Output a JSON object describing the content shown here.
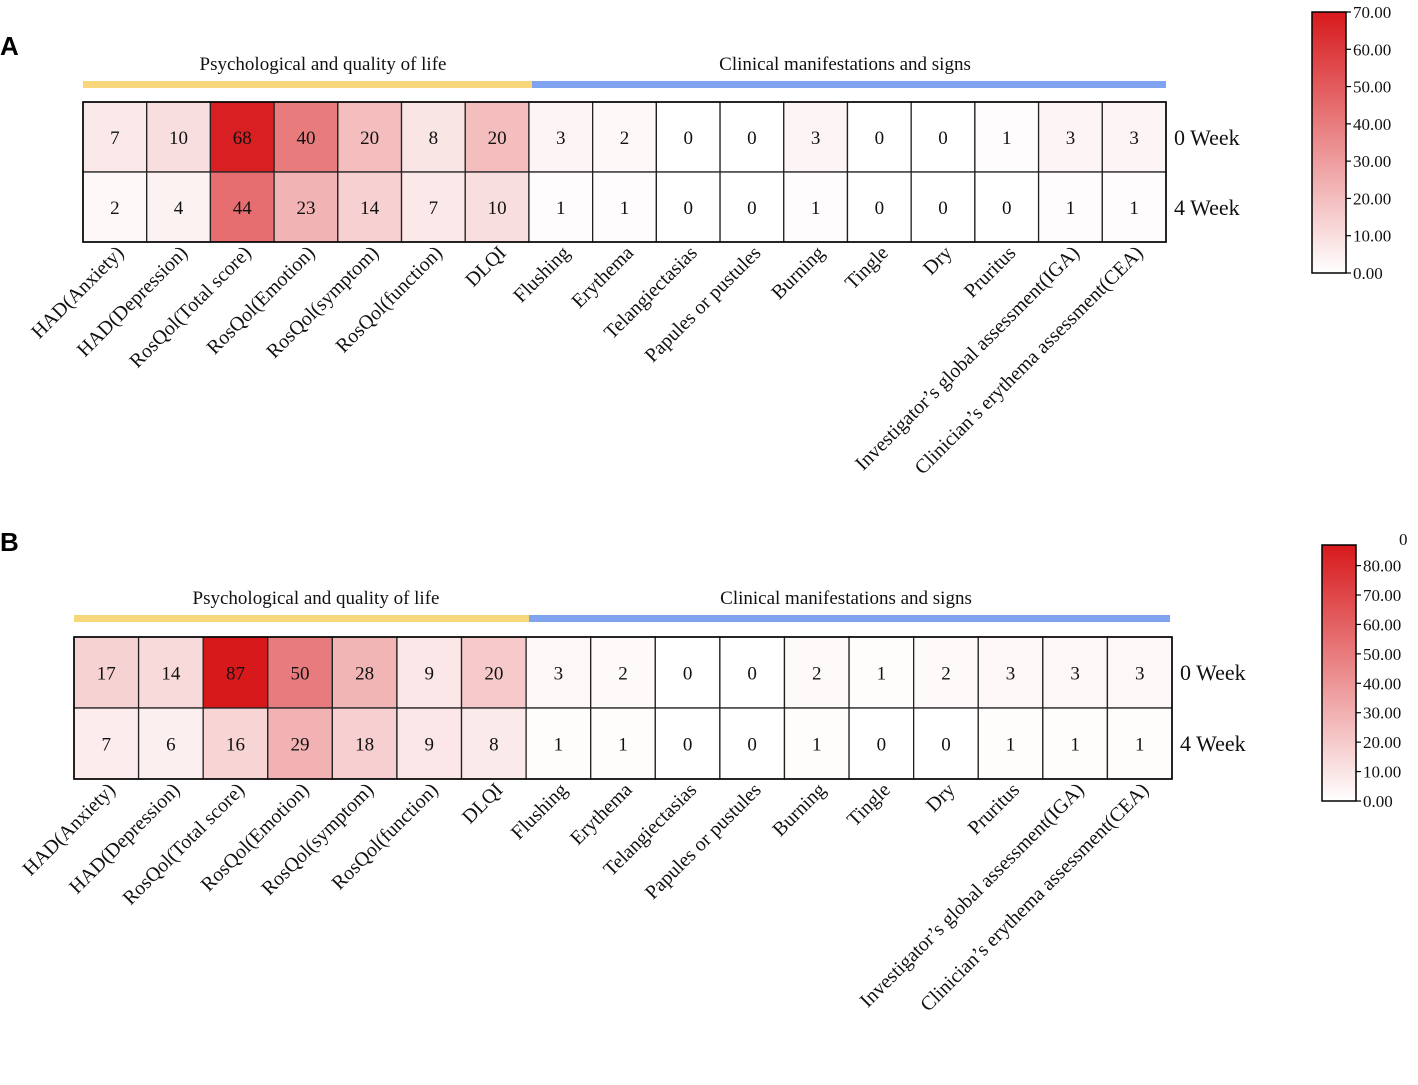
{
  "chart_data": [
    {
      "type": "heatmap",
      "panel": "A",
      "groups": [
        {
          "label": "Psychological and quality of life",
          "color": "#f7d77a"
        },
        {
          "label": "Clinical manifestations and signs",
          "color": "#7fa3ee"
        }
      ],
      "columns": [
        "HAD(Anxiety)",
        "HAD(Depression)",
        "RosQol(Total score)",
        "RosQol(Emotion)",
        "RosQol(symptom)",
        "RosQol(function)",
        "DLQI",
        "Flushing",
        "Erythema",
        "Telangiectasias",
        "Papules or pustules",
        "Burning",
        "Tingle",
        "Dry",
        "Pruritus",
        "Investigator’s global assessment(IGA)",
        "Clinician’s erythema assessment(CEA)"
      ],
      "rows": [
        "0 Week",
        "4 Week"
      ],
      "values": [
        [
          7,
          10,
          68,
          40,
          20,
          8,
          20,
          3,
          2,
          0,
          0,
          3,
          0,
          0,
          1,
          3,
          3
        ],
        [
          2,
          4,
          44,
          23,
          14,
          7,
          10,
          1,
          1,
          0,
          0,
          1,
          0,
          0,
          0,
          1,
          1
        ]
      ],
      "colorbar": {
        "min": 0,
        "max": 70,
        "ticks": [
          "0.00",
          "10.00",
          "20.00",
          "30.00",
          "40.00",
          "50.00",
          "60.00",
          "70.00"
        ]
      },
      "color_low": "#ffffff",
      "color_high": "#d7191c"
    },
    {
      "type": "heatmap",
      "panel": "B",
      "groups": [
        {
          "label": "Psychological and quality of life",
          "color": "#f7d77a"
        },
        {
          "label": "Clinical manifestations and signs",
          "color": "#7fa3ee"
        }
      ],
      "columns": [
        "HAD(Anxiety)",
        "HAD(Depression)",
        "RosQol(Total score)",
        "RosQol(Emotion)",
        "RosQol(symptom)",
        "RosQol(function)",
        "DLQI",
        "Flushing",
        "Erythema",
        "Telangiectasias",
        "Papules or pustules",
        "Burning",
        "Tingle",
        "Dry",
        "Pruritus",
        "Investigator’s global assessment(IGA)",
        "Clinician’s erythema assessment(CEA)"
      ],
      "rows": [
        "0 Week",
        "4 Week"
      ],
      "values": [
        [
          17,
          14,
          87,
          50,
          28,
          9,
          20,
          3,
          2,
          0,
          0,
          2,
          1,
          2,
          3,
          3,
          3
        ],
        [
          7,
          6,
          16,
          29,
          18,
          9,
          8,
          1,
          1,
          0,
          0,
          1,
          0,
          0,
          1,
          1,
          1
        ]
      ],
      "colorbar": {
        "min": 0,
        "max": 87,
        "ticks": [
          "0.00",
          "10.00",
          "20.00",
          "30.00",
          "40.00",
          "50.00",
          "60.00",
          "70.00",
          "80.00"
        ],
        "clipped_top_label": "0"
      },
      "color_low": "#ffffff",
      "color_high": "#d7191c"
    }
  ]
}
